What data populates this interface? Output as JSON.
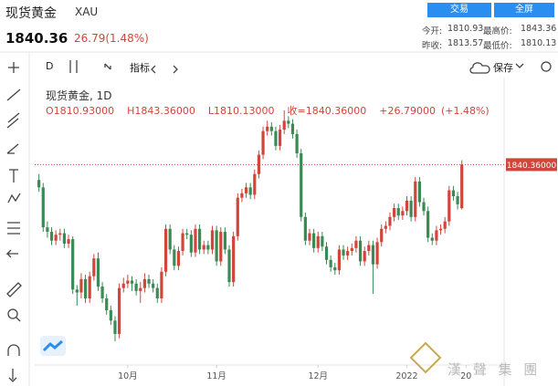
{
  "header": {
    "title": "现货黄金",
    "symbol": "XAU",
    "price": "1840.36",
    "change": "26.79(1.48%)",
    "buttons": [
      "交易",
      "全屏"
    ],
    "stats": [
      [
        "今开:",
        "1810.93",
        "最高价:",
        "1843.36"
      ],
      [
        "昨收:",
        "1813.57",
        "最低价:",
        "1810.13"
      ]
    ]
  },
  "toolbar": {
    "interval": "D",
    "indicators": "指标",
    "save": "保存"
  },
  "legend": {
    "name": "现货黄金, 1D",
    "ohlc": [
      "O1810.93000",
      "H1843.36000",
      "L1810.13000",
      "收=1840.36000",
      "+26.79000",
      "(+1.48%)"
    ]
  },
  "watermark": "漢 聲 集 團",
  "chart_data": {
    "type": "candlestick",
    "up_color": "#d0463b",
    "down_color": "#3a8a55",
    "xlim": [
      -1,
      110
    ],
    "ylim": [
      1705,
      1893
    ],
    "xticks": [
      {
        "value": 21,
        "label": "10月"
      },
      {
        "value": 42,
        "label": "11月"
      },
      {
        "value": 66,
        "label": "12月"
      },
      {
        "value": 87,
        "label": "2022"
      },
      {
        "value": 101,
        "label": "20"
      }
    ],
    "last_price_label": "1840.36000",
    "open": [
      1830,
      1825,
      1798,
      1795,
      1789,
      1793,
      1794,
      1787,
      1790,
      1756,
      1754,
      1763,
      1750,
      1765,
      1777,
      1758,
      1750,
      1742,
      1735,
      1726,
      1757,
      1760,
      1762,
      1760,
      1755,
      1757,
      1763,
      1760,
      1757,
      1750,
      1768,
      1797,
      1783,
      1772,
      1782,
      1794,
      1793,
      1781,
      1797,
      1783,
      1786,
      1783,
      1796,
      1775,
      1795,
      1783,
      1761,
      1792,
      1818,
      1821,
      1825,
      1820,
      1834,
      1847,
      1863,
      1866,
      1863,
      1853,
      1864,
      1870,
      1868,
      1861,
      1848,
      1805,
      1789,
      1794,
      1784,
      1792,
      1785,
      1776,
      1771,
      1769,
      1783,
      1779,
      1782,
      1784,
      1789,
      1775,
      1782,
      1786,
      1773,
      1788,
      1797,
      1799,
      1805,
      1811,
      1806,
      1809,
      1816,
      1805,
      1829,
      1815,
      1809,
      1791,
      1789,
      1796,
      1797,
      1802,
      1823,
      1819,
      1810.93
    ],
    "high": [
      1834,
      1828,
      1802,
      1798,
      1796,
      1797,
      1797,
      1793,
      1792,
      1759,
      1767,
      1766,
      1768,
      1780,
      1781,
      1761,
      1753,
      1745,
      1738,
      1760,
      1764,
      1766,
      1765,
      1763,
      1761,
      1767,
      1766,
      1763,
      1760,
      1771,
      1800,
      1800,
      1786,
      1785,
      1797,
      1797,
      1796,
      1800,
      1800,
      1789,
      1789,
      1799,
      1799,
      1798,
      1798,
      1786,
      1795,
      1821,
      1824,
      1828,
      1828,
      1837,
      1850,
      1866,
      1870,
      1869,
      1866,
      1867,
      1877,
      1873,
      1871,
      1864,
      1851,
      1808,
      1797,
      1797,
      1795,
      1795,
      1788,
      1779,
      1774,
      1786,
      1786,
      1785,
      1787,
      1792,
      1792,
      1785,
      1789,
      1789,
      1791,
      1800,
      1802,
      1808,
      1814,
      1814,
      1812,
      1819,
      1819,
      1832,
      1832,
      1818,
      1812,
      1794,
      1799,
      1800,
      1805,
      1826,
      1826,
      1822,
      1843.36
    ],
    "low": [
      1822,
      1795,
      1791,
      1786,
      1786,
      1789,
      1784,
      1784,
      1753,
      1745,
      1750,
      1747,
      1747,
      1762,
      1755,
      1747,
      1739,
      1732,
      1721,
      1723,
      1754,
      1757,
      1755,
      1752,
      1747,
      1754,
      1757,
      1754,
      1747,
      1747,
      1765,
      1780,
      1769,
      1769,
      1779,
      1790,
      1778,
      1778,
      1780,
      1780,
      1780,
      1780,
      1772,
      1772,
      1780,
      1758,
      1758,
      1789,
      1815,
      1818,
      1817,
      1817,
      1831,
      1844,
      1860,
      1860,
      1850,
      1850,
      1861,
      1865,
      1858,
      1845,
      1802,
      1786,
      1786,
      1781,
      1781,
      1782,
      1773,
      1768,
      1766,
      1766,
      1776,
      1776,
      1779,
      1781,
      1772,
      1772,
      1779,
      1753,
      1770,
      1785,
      1794,
      1796,
      1802,
      1803,
      1803,
      1806,
      1802,
      1802,
      1812,
      1806,
      1788,
      1786,
      1786,
      1793,
      1794,
      1799,
      1816,
      1810,
      1810.13
    ],
    "close": [
      1825,
      1798,
      1795,
      1789,
      1793,
      1794,
      1787,
      1790,
      1756,
      1754,
      1763,
      1750,
      1765,
      1777,
      1758,
      1750,
      1742,
      1735,
      1726,
      1757,
      1760,
      1762,
      1760,
      1755,
      1757,
      1763,
      1760,
      1757,
      1750,
      1768,
      1797,
      1783,
      1772,
      1782,
      1794,
      1793,
      1781,
      1797,
      1783,
      1786,
      1783,
      1796,
      1775,
      1795,
      1783,
      1761,
      1792,
      1818,
      1821,
      1825,
      1820,
      1834,
      1847,
      1863,
      1866,
      1863,
      1853,
      1864,
      1870,
      1868,
      1861,
      1848,
      1805,
      1789,
      1794,
      1784,
      1792,
      1785,
      1776,
      1771,
      1769,
      1783,
      1779,
      1782,
      1784,
      1789,
      1775,
      1782,
      1786,
      1773,
      1788,
      1797,
      1799,
      1805,
      1811,
      1806,
      1809,
      1816,
      1805,
      1829,
      1815,
      1809,
      1791,
      1789,
      1796,
      1797,
      1802,
      1823,
      1819,
      1813.57,
      1840.36
    ]
  }
}
